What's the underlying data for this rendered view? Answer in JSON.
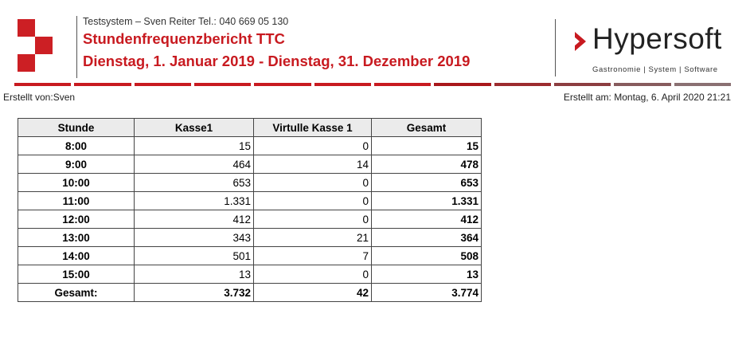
{
  "header": {
    "company_line": "Testsystem – Sven Reiter Tel.: 040 669 05 130",
    "report_title": "Stundenfrequenzbericht TTC",
    "date_range": "Dienstag, 1. Januar 2019 - Dienstag, 31. Dezember 2019",
    "brand_name": "Hypersoft",
    "brand_tagline": "Gastronomie | System | Software",
    "accent_color": "#c81a20"
  },
  "meta": {
    "created_by": "Erstellt von:Sven",
    "created_at": "Erstellt am: Montag, 6. April 2020 21:21"
  },
  "table": {
    "columns": [
      "Stunde",
      "Kasse1",
      "Virtulle Kasse 1",
      "Gesamt"
    ],
    "rows": [
      [
        "8:00",
        "15",
        "0",
        "15"
      ],
      [
        "9:00",
        "464",
        "14",
        "478"
      ],
      [
        "10:00",
        "653",
        "0",
        "653"
      ],
      [
        "11:00",
        "1.331",
        "0",
        "1.331"
      ],
      [
        "12:00",
        "412",
        "0",
        "412"
      ],
      [
        "13:00",
        "343",
        "21",
        "364"
      ],
      [
        "14:00",
        "501",
        "7",
        "508"
      ],
      [
        "15:00",
        "13",
        "0",
        "13"
      ]
    ],
    "total": [
      "Gesamt:",
      "3.732",
      "42",
      "3.774"
    ]
  }
}
